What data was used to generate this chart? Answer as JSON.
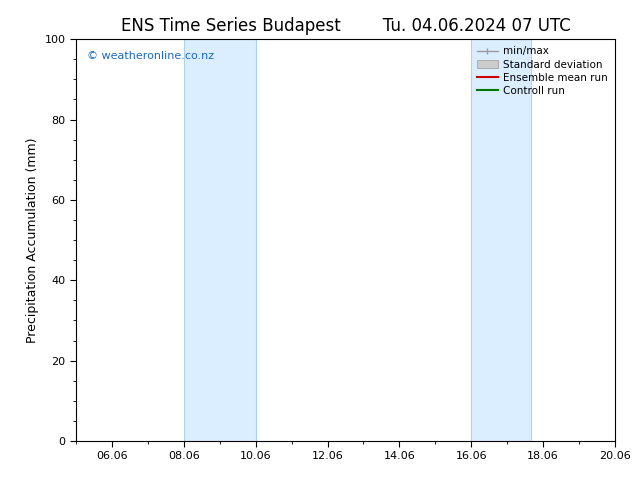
{
  "title_left": "ENS Time Series Budapest",
  "title_right": "Tu. 04.06.2024 07 UTC",
  "ylabel": "Precipitation Accumulation (mm)",
  "watermark": "© weatheronline.co.nz",
  "watermark_color": "#1a6abf",
  "ylim": [
    0,
    100
  ],
  "yticks": [
    0,
    20,
    40,
    60,
    80,
    100
  ],
  "xlim": [
    0,
    15
  ],
  "xtick_labels": [
    "06.06",
    "08.06",
    "10.06",
    "12.06",
    "14.06",
    "16.06",
    "18.06",
    "20.06"
  ],
  "xtick_positions": [
    1,
    3,
    5,
    7,
    9,
    11,
    13,
    15
  ],
  "shaded_bands": [
    {
      "x_start": 3.0,
      "x_end": 5.0
    },
    {
      "x_start": 11.0,
      "x_end": 12.67
    }
  ],
  "shaded_color": "#daeeff",
  "shaded_edge_color": "#aad4ee",
  "legend_entries": [
    {
      "label": "min/max",
      "color": "#aaaaaa",
      "type": "line_caps"
    },
    {
      "label": "Standard deviation",
      "color": "#cccccc",
      "type": "fill"
    },
    {
      "label": "Ensemble mean run",
      "color": "#cc0000",
      "type": "line"
    },
    {
      "label": "Controll run",
      "color": "#007700",
      "type": "line"
    }
  ],
  "background_color": "#ffffff",
  "spine_color": "#000000",
  "tick_color": "#000000",
  "font_size_title": 12,
  "font_size_axis_label": 9,
  "font_size_tick": 8,
  "font_size_watermark": 8,
  "font_size_legend": 7.5
}
